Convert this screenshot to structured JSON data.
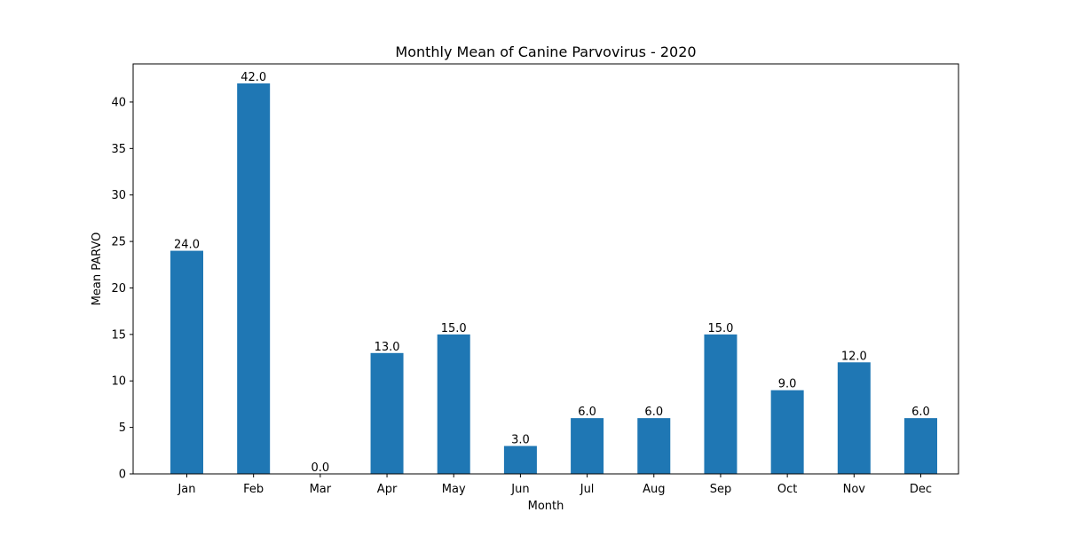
{
  "chart_data": {
    "type": "bar",
    "title": "Monthly Mean of Canine Parvovirus - 2020",
    "xlabel": "Month",
    "ylabel": "Mean PARVO",
    "categories": [
      "Jan",
      "Feb",
      "Mar",
      "Apr",
      "May",
      "Jun",
      "Jul",
      "Aug",
      "Sep",
      "Oct",
      "Nov",
      "Dec"
    ],
    "values": [
      24.0,
      42.0,
      0.0,
      13.0,
      15.0,
      3.0,
      6.0,
      6.0,
      15.0,
      9.0,
      12.0,
      6.0
    ],
    "data_labels": [
      "24.0",
      "42.0",
      "0.0",
      "13.0",
      "15.0",
      "3.0",
      "6.0",
      "6.0",
      "15.0",
      "9.0",
      "12.0",
      "6.0"
    ],
    "y_ticks": [
      0,
      5,
      10,
      15,
      20,
      25,
      30,
      35,
      40
    ],
    "ylim": [
      0,
      44.1
    ],
    "grid": false,
    "legend": "none",
    "colors": {
      "bar": "#1f77b4",
      "axis": "#000000",
      "background": "#ffffff"
    }
  }
}
